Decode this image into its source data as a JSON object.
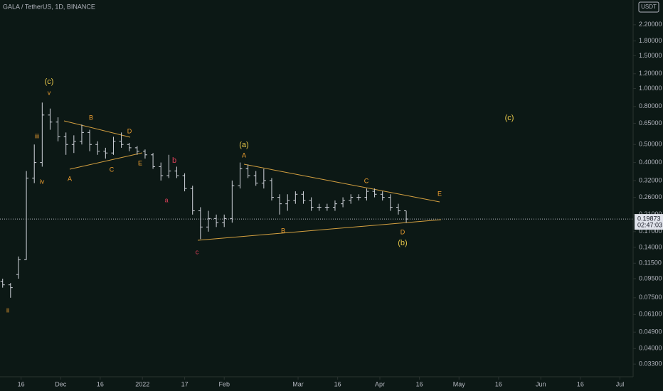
{
  "chart_data": {
    "type": "ohlc",
    "title": "GALA / TetherUS, 1D, BINANCE",
    "currency": "USDT",
    "log_scale": true,
    "color": "#d1d4dc",
    "x": [
      "2021-11-09",
      "2021-11-12",
      "2021-11-15",
      "2021-11-18",
      "2021-11-21",
      "2021-11-24",
      "2021-11-27",
      "2021-11-30",
      "2021-12-03",
      "2021-12-06",
      "2021-12-09",
      "2021-12-12",
      "2021-12-15",
      "2021-12-18",
      "2021-12-21",
      "2021-12-24",
      "2021-12-27",
      "2021-12-30",
      "2022-01-02",
      "2022-01-05",
      "2022-01-08",
      "2022-01-11",
      "2022-01-14",
      "2022-01-17",
      "2022-01-20",
      "2022-01-23",
      "2022-01-26",
      "2022-01-29",
      "2022-02-01",
      "2022-02-04",
      "2022-02-07",
      "2022-02-10",
      "2022-02-13",
      "2022-02-16",
      "2022-02-19",
      "2022-02-22",
      "2022-02-25",
      "2022-02-28",
      "2022-03-03",
      "2022-03-06",
      "2022-03-09",
      "2022-03-12",
      "2022-03-15",
      "2022-03-18",
      "2022-03-21",
      "2022-03-24",
      "2022-03-27",
      "2022-03-30",
      "2022-04-02",
      "2022-04-05",
      "2022-04-08",
      "2022-04-11"
    ],
    "open": [
      0.092,
      0.088,
      0.1,
      0.12,
      0.33,
      0.4,
      0.72,
      0.66,
      0.55,
      0.5,
      0.52,
      0.58,
      0.5,
      0.46,
      0.45,
      0.52,
      0.5,
      0.48,
      0.46,
      0.44,
      0.38,
      0.34,
      0.36,
      0.34,
      0.29,
      0.22,
      0.18,
      0.2,
      0.19,
      0.2,
      0.3,
      0.37,
      0.34,
      0.31,
      0.32,
      0.26,
      0.24,
      0.25,
      0.27,
      0.25,
      0.23,
      0.23,
      0.23,
      0.24,
      0.25,
      0.26,
      0.26,
      0.28,
      0.27,
      0.26,
      0.23,
      0.22
    ],
    "high": [
      0.095,
      0.09,
      0.125,
      0.36,
      0.5,
      0.84,
      0.78,
      0.7,
      0.58,
      0.56,
      0.64,
      0.6,
      0.52,
      0.48,
      0.55,
      0.58,
      0.51,
      0.49,
      0.47,
      0.45,
      0.4,
      0.44,
      0.38,
      0.35,
      0.3,
      0.23,
      0.22,
      0.21,
      0.21,
      0.32,
      0.4,
      0.39,
      0.36,
      0.37,
      0.33,
      0.27,
      0.27,
      0.28,
      0.28,
      0.26,
      0.24,
      0.24,
      0.25,
      0.26,
      0.27,
      0.27,
      0.29,
      0.29,
      0.28,
      0.27,
      0.24,
      0.22
    ],
    "low": [
      0.085,
      0.075,
      0.095,
      0.12,
      0.31,
      0.38,
      0.6,
      0.52,
      0.44,
      0.45,
      0.5,
      0.46,
      0.44,
      0.42,
      0.44,
      0.48,
      0.46,
      0.44,
      0.42,
      0.37,
      0.32,
      0.33,
      0.33,
      0.28,
      0.21,
      0.155,
      0.17,
      0.18,
      0.18,
      0.19,
      0.29,
      0.33,
      0.3,
      0.29,
      0.25,
      0.21,
      0.22,
      0.24,
      0.24,
      0.22,
      0.22,
      0.22,
      0.22,
      0.23,
      0.24,
      0.25,
      0.25,
      0.26,
      0.25,
      0.22,
      0.21,
      0.19
    ],
    "close": [
      0.088,
      0.085,
      0.12,
      0.33,
      0.4,
      0.72,
      0.66,
      0.55,
      0.5,
      0.52,
      0.58,
      0.5,
      0.46,
      0.45,
      0.52,
      0.5,
      0.48,
      0.46,
      0.44,
      0.38,
      0.34,
      0.36,
      0.34,
      0.29,
      0.22,
      0.18,
      0.2,
      0.19,
      0.2,
      0.3,
      0.37,
      0.34,
      0.31,
      0.32,
      0.26,
      0.24,
      0.25,
      0.27,
      0.25,
      0.23,
      0.23,
      0.23,
      0.24,
      0.25,
      0.26,
      0.26,
      0.28,
      0.27,
      0.26,
      0.23,
      0.22,
      0.19873
    ],
    "last_price": 0.19873,
    "countdown": "02:47:03",
    "xlim": [
      "2021-11-08",
      "2022-07-06"
    ],
    "xticks": [
      {
        "value": "2021-11-16",
        "label": "16"
      },
      {
        "value": "2021-12-01",
        "label": "Dec"
      },
      {
        "value": "2021-12-16",
        "label": "16"
      },
      {
        "value": "2022-01-01",
        "label": "2022"
      },
      {
        "value": "2022-01-17",
        "label": "17"
      },
      {
        "value": "2022-02-01",
        "label": "Feb"
      },
      {
        "value": "2022-03-01",
        "label": "Mar"
      },
      {
        "value": "2022-03-16",
        "label": "16"
      },
      {
        "value": "2022-04-01",
        "label": "Apr"
      },
      {
        "value": "2022-04-16",
        "label": "16"
      },
      {
        "value": "2022-05-01",
        "label": "May"
      },
      {
        "value": "2022-05-16",
        "label": "16"
      },
      {
        "value": "2022-06-01",
        "label": "Jun"
      },
      {
        "value": "2022-06-16",
        "label": "16"
      },
      {
        "value": "2022-07-01",
        "label": "Jul"
      }
    ],
    "ylim": [
      0.0282,
      2.99
    ],
    "yticks": [
      {
        "value": 2.2,
        "label": "2.20000"
      },
      {
        "value": 1.8,
        "label": "1.80000"
      },
      {
        "value": 1.5,
        "label": "1.50000"
      },
      {
        "value": 1.2,
        "label": "1.20000"
      },
      {
        "value": 1,
        "label": "1.00000"
      },
      {
        "value": 0.8,
        "label": "0.80000"
      },
      {
        "value": 0.65,
        "label": "0.65000"
      },
      {
        "value": 0.5,
        "label": "0.50000"
      },
      {
        "value": 0.4,
        "label": "0.40000"
      },
      {
        "value": 0.32,
        "label": "0.32000"
      },
      {
        "value": 0.26,
        "label": "0.26000"
      },
      {
        "value": 0.21,
        "label": "0.21000"
      },
      {
        "value": 0.17,
        "label": "0.17000"
      },
      {
        "value": 0.14,
        "label": "0.14000"
      },
      {
        "value": 0.115,
        "label": "0.11500"
      },
      {
        "value": 0.095,
        "label": "0.09500"
      },
      {
        "value": 0.075,
        "label": "0.07500"
      },
      {
        "value": 0.061,
        "label": "0.06100"
      },
      {
        "value": 0.049,
        "label": "0.04900"
      },
      {
        "value": 0.04,
        "label": "0.04000"
      },
      {
        "value": 0.033,
        "label": "0.03300"
      }
    ],
    "annotations": [
      {
        "text": "(c)",
        "color": "#e8c84a"
      },
      {
        "text": "v",
        "color": "#f0a030"
      },
      {
        "text": "iii",
        "color": "#f0a030"
      },
      {
        "text": "iv",
        "color": "#f0a030"
      },
      {
        "text": "ii",
        "color": "#f0a030"
      },
      {
        "text": "B",
        "color": "#f0a030"
      },
      {
        "text": "D",
        "color": "#f0a030"
      },
      {
        "text": "A",
        "color": "#f0a030"
      },
      {
        "text": "C",
        "color": "#f0a030"
      },
      {
        "text": "E",
        "color": "#f0a030"
      },
      {
        "text": "b",
        "color": "#e0405a"
      },
      {
        "text": "a",
        "color": "#e0405a"
      },
      {
        "text": "c",
        "color": "#e0405a"
      },
      {
        "text": "(a)",
        "color": "#e8c84a"
      },
      {
        "text": "A",
        "color": "#f0a030"
      },
      {
        "text": "C",
        "color": "#f0a030"
      },
      {
        "text": "E",
        "color": "#f0a030"
      },
      {
        "text": "B",
        "color": "#f0a030"
      },
      {
        "text": "D",
        "color": "#f0a030"
      },
      {
        "text": "(b)",
        "color": "#e8c84a"
      },
      {
        "text": "(c)",
        "color": "#e8c84a"
      }
    ]
  }
}
